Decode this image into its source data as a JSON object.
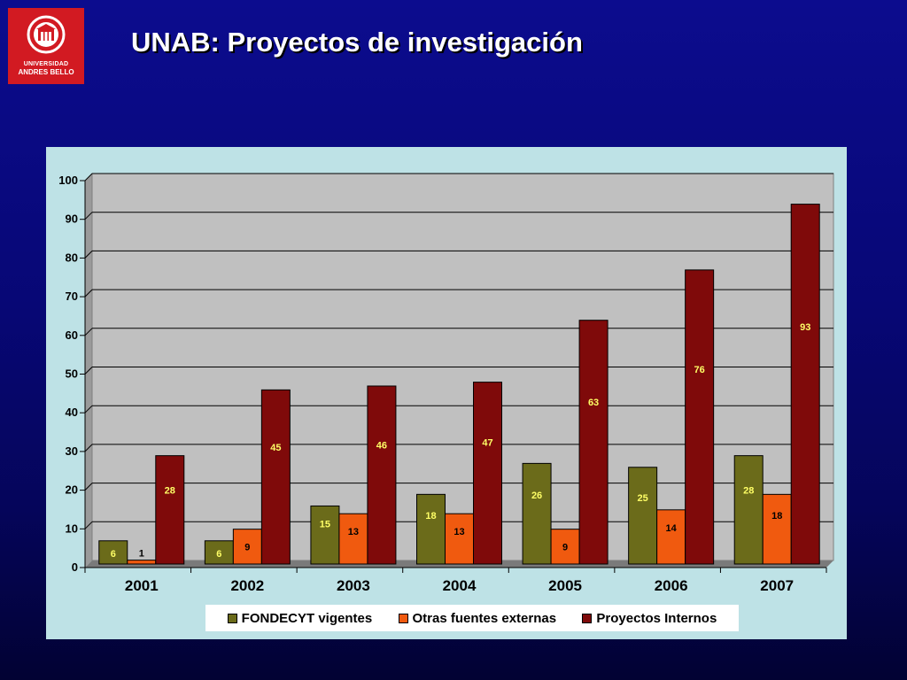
{
  "header": {
    "title": "UNAB: Proyectos de investigación",
    "logo": {
      "line1": "UNIVERSIDAD",
      "line2": "ANDRES BELLO",
      "color": "#d21a22"
    }
  },
  "chart_data": {
    "type": "bar",
    "title": "",
    "xlabel": "",
    "ylabel": "",
    "categories": [
      "2001",
      "2002",
      "2003",
      "2004",
      "2005",
      "2006",
      "2007"
    ],
    "ylim": [
      0,
      100
    ],
    "yticks": [
      0,
      10,
      20,
      30,
      40,
      50,
      60,
      70,
      80,
      90,
      100
    ],
    "grid": true,
    "legend_position": "bottom",
    "series": [
      {
        "name": "FONDECYT vigentes",
        "values": [
          6,
          6,
          15,
          18,
          26,
          25,
          28
        ],
        "color": "#6b6b1a",
        "label_color": "#ffff66"
      },
      {
        "name": "Otras fuentes externas",
        "values": [
          1,
          9,
          13,
          13,
          9,
          14,
          18
        ],
        "color": "#f05a0f",
        "label_color": "#000000"
      },
      {
        "name": "Proyectos Internos",
        "values": [
          28,
          45,
          46,
          47,
          63,
          76,
          93
        ],
        "color": "#7f0a0a",
        "label_color": "#ffff66"
      }
    ]
  }
}
